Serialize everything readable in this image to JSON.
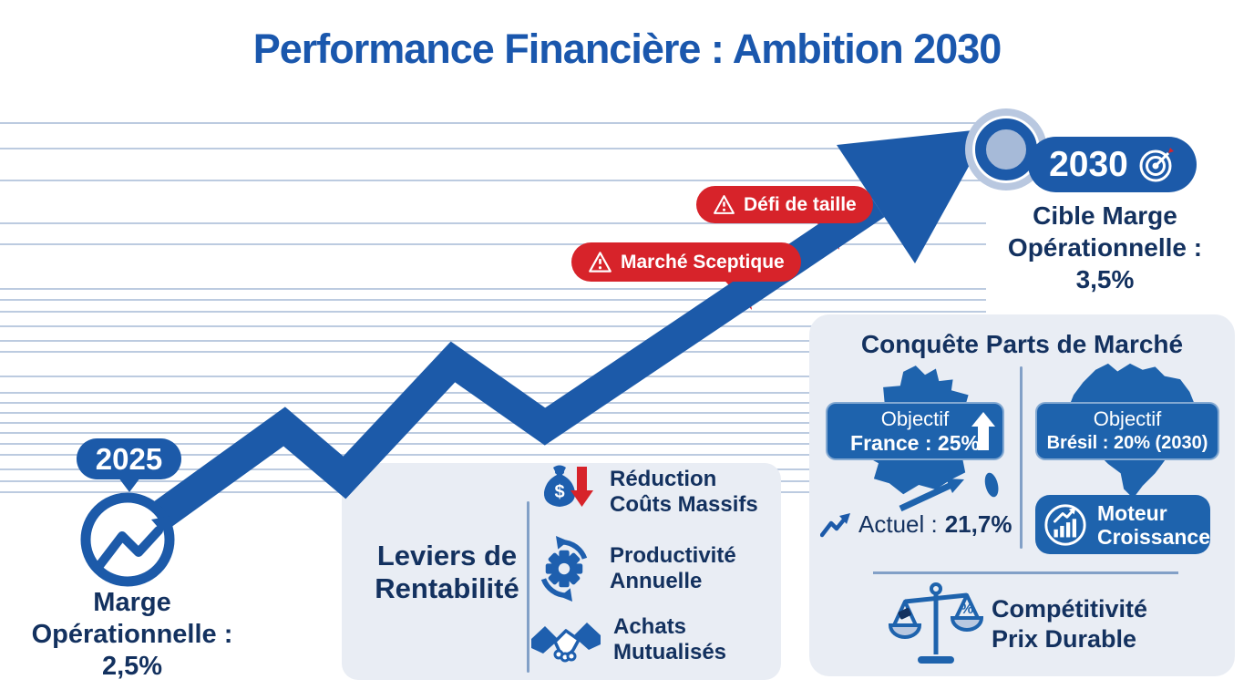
{
  "title": "Performance Financière : Ambition 2030",
  "colors": {
    "accent_blue": "#1c5aa9",
    "box_blue": "#1e63ad",
    "navy_text": "#13315f",
    "alert_red": "#d7232a",
    "panel_bg": "#e9edf4"
  },
  "start_marker": {
    "year": "2025",
    "caption_lines": [
      "Marge",
      "Opérationnelle :",
      "2,5%"
    ]
  },
  "end_marker": {
    "year": "2030",
    "caption_lines": [
      "Cible Marge",
      "Opérationnelle :",
      "3,5%"
    ]
  },
  "callouts": [
    {
      "icon": "warning-icon",
      "text": "Marché Sceptique"
    },
    {
      "icon": "warning-icon",
      "text": "Défi de taille"
    }
  ],
  "levers_panel": {
    "title_lines": [
      "Leviers de",
      "Rentabilité"
    ],
    "items": [
      {
        "icon": "money-bag-cost-cut-icon",
        "lines": [
          "Réduction",
          "Coûts Massifs"
        ]
      },
      {
        "icon": "gear-cycle-icon",
        "lines": [
          "Productivité",
          "Annuelle"
        ]
      },
      {
        "icon": "handshake-icon",
        "lines": [
          "Achats",
          "Mutualisés"
        ]
      }
    ]
  },
  "market_panel": {
    "title": "Conquête Parts de Marché",
    "france": {
      "box_line1": "Objectif",
      "box_line2": "France : 25%",
      "current_label": "Actuel :",
      "current_value": "21,7%"
    },
    "brazil": {
      "box_line1": "Objectif",
      "box_line2": "Brésil : 20% (2030)",
      "engine_lines": [
        "Moteur",
        "Croissance"
      ]
    },
    "competitiveness_lines": [
      "Compétitivité",
      "Prix Durable"
    ]
  },
  "icons": {
    "dollar_glyph": "$",
    "percent_glyph": "%",
    "warning": "⚠",
    "up_arrow": "↑",
    "trend_arrow": "↗"
  }
}
